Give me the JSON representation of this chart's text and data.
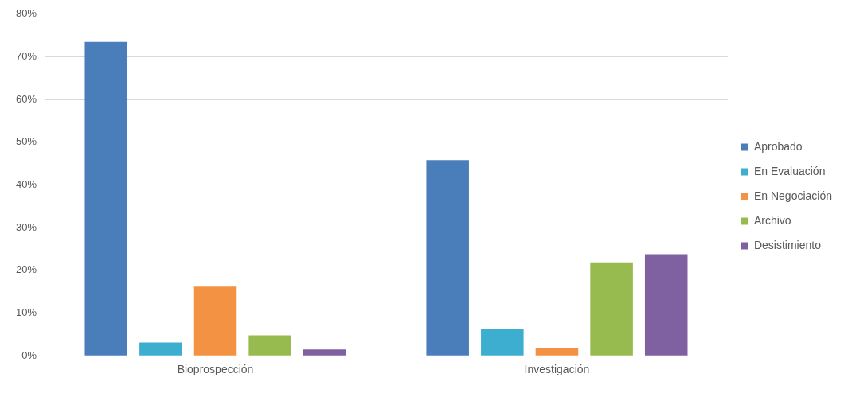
{
  "chart_data": {
    "type": "bar",
    "categories": [
      "Bioprospección",
      "Investigación"
    ],
    "series": [
      {
        "name": "Aprobado",
        "color": "#4a7ebb",
        "values": [
          73.5,
          45.8
        ]
      },
      {
        "name": "En Evaluación",
        "color": "#3daed0",
        "values": [
          3.1,
          6.3
        ]
      },
      {
        "name": "En Negociación",
        "color": "#f39242",
        "values": [
          16.2,
          1.7
        ]
      },
      {
        "name": "Archivo",
        "color": "#98bb4f",
        "values": [
          4.8,
          21.9
        ]
      },
      {
        "name": "Desistimiento",
        "color": "#7f61a1",
        "values": [
          1.5,
          23.8
        ]
      }
    ],
    "ylim": [
      0,
      80
    ],
    "yticks": [
      {
        "value": 0,
        "label": "0%"
      },
      {
        "value": 10,
        "label": "10%"
      },
      {
        "value": 20,
        "label": "20%"
      },
      {
        "value": 30,
        "label": "30%"
      },
      {
        "value": 40,
        "label": "40%"
      },
      {
        "value": 50,
        "label": "50%"
      },
      {
        "value": 60,
        "label": "60%"
      },
      {
        "value": 70,
        "label": "70%"
      },
      {
        "value": 80,
        "label": "80%"
      }
    ],
    "grid": "y",
    "legend": "right"
  }
}
